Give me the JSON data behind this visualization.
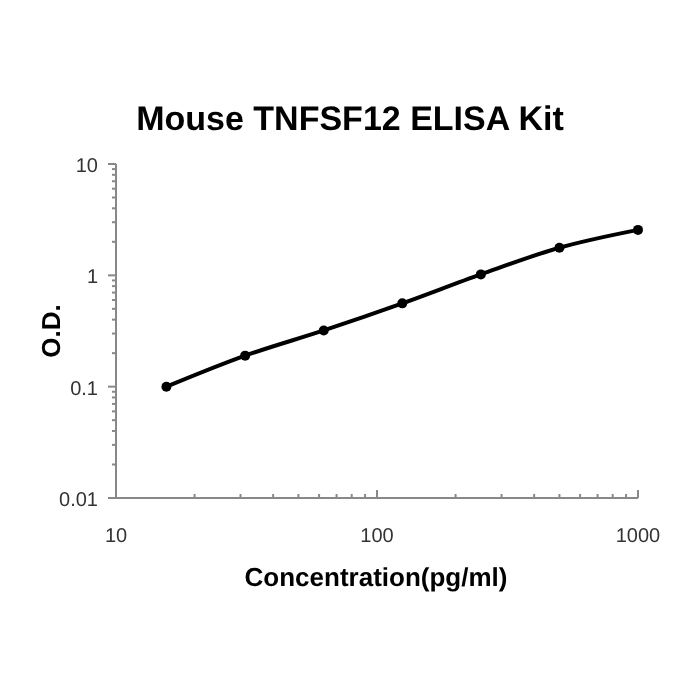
{
  "chart_data": {
    "type": "line",
    "title": "Mouse TNFSF12 ELISA Kit",
    "xlabel": "Concentration(pg/ml)",
    "ylabel": "O.D.",
    "log": "xy",
    "marker": "circle",
    "line_style": "solid",
    "grid": false,
    "x": [
      15.6,
      31.25,
      62.5,
      125,
      250,
      500,
      1000
    ],
    "series": [
      {
        "color": "#000000",
        "values": [
          0.1,
          0.19,
          0.32,
          0.56,
          1.02,
          1.77,
          2.56
        ]
      }
    ],
    "xlim": [
      10,
      1000
    ],
    "ylim": [
      0.01,
      10
    ],
    "xticks": [
      10,
      {
        "value": 20,
        "label": null
      },
      {
        "value": 30,
        "label": null
      },
      {
        "value": 40,
        "label": null
      },
      {
        "value": 50,
        "label": null
      },
      {
        "value": 60,
        "label": null
      },
      {
        "value": 70,
        "label": null
      },
      {
        "value": 80,
        "label": null
      },
      {
        "value": 90,
        "label": null
      },
      100,
      {
        "value": 200,
        "label": null
      },
      {
        "value": 300,
        "label": null
      },
      {
        "value": 400,
        "label": null
      },
      {
        "value": 500,
        "label": null
      },
      {
        "value": 600,
        "label": null
      },
      {
        "value": 700,
        "label": null
      },
      {
        "value": 800,
        "label": null
      },
      {
        "value": 900,
        "label": null
      },
      1000
    ],
    "yticks": [
      0.01,
      {
        "value": 0.02,
        "label": null
      },
      {
        "value": 0.03,
        "label": null
      },
      {
        "value": 0.04,
        "label": null
      },
      {
        "value": 0.05,
        "label": null
      },
      {
        "value": 0.06,
        "label": null
      },
      {
        "value": 0.07,
        "label": null
      },
      {
        "value": 0.08,
        "label": null
      },
      {
        "value": 0.09,
        "label": null
      },
      0.1,
      {
        "value": 0.2,
        "label": null
      },
      {
        "value": 0.3,
        "label": null
      },
      {
        "value": 0.4,
        "label": null
      },
      {
        "value": 0.5,
        "label": null
      },
      {
        "value": 0.6,
        "label": null
      },
      {
        "value": 0.7,
        "label": null
      },
      {
        "value": 0.8,
        "label": null
      },
      {
        "value": 0.9,
        "label": null
      },
      1,
      {
        "value": 2,
        "label": null
      },
      {
        "value": 3,
        "label": null
      },
      {
        "value": 4,
        "label": null
      },
      {
        "value": 5,
        "label": null
      },
      {
        "value": 6,
        "label": null
      },
      {
        "value": 7,
        "label": null
      },
      {
        "value": 8,
        "label": null
      },
      {
        "value": 9,
        "label": null
      },
      10
    ]
  }
}
